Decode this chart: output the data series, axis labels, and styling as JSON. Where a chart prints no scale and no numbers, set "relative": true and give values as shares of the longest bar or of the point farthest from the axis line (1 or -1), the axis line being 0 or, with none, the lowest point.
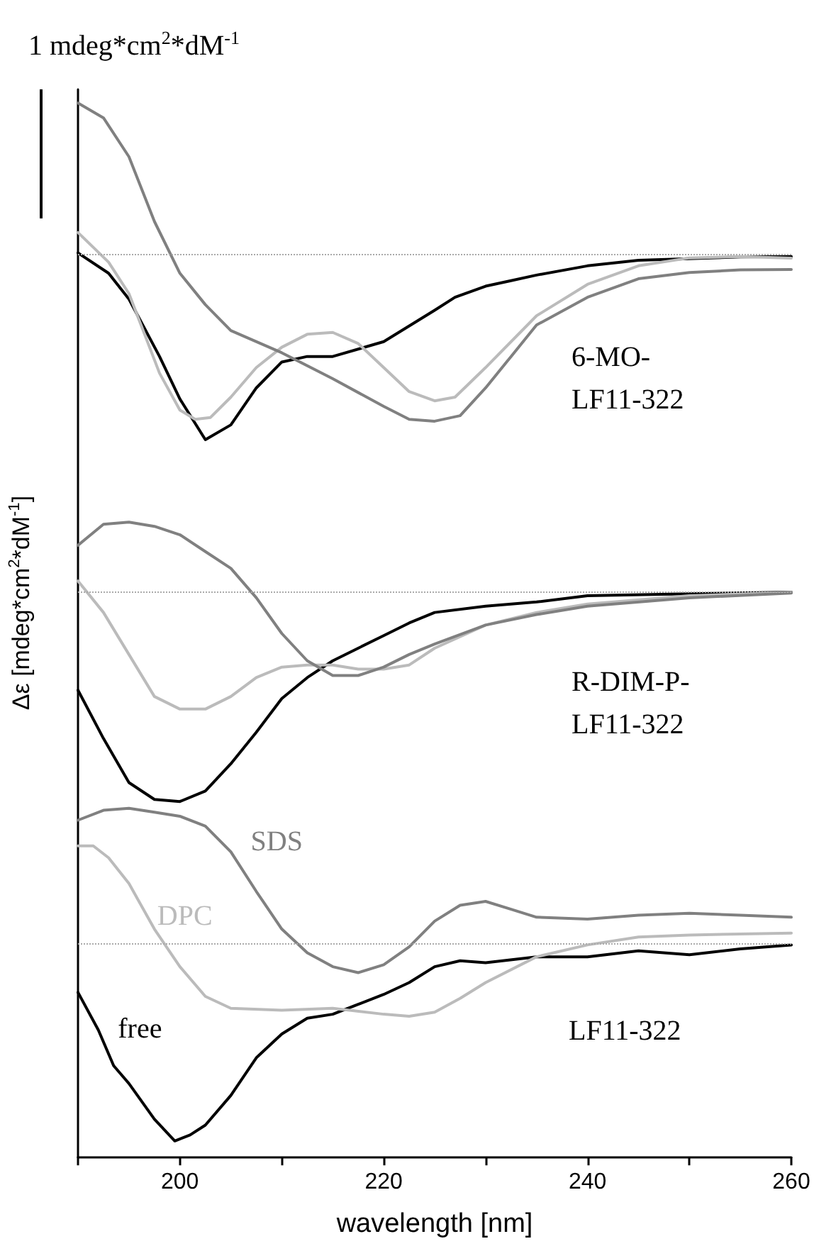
{
  "chart_data": [
    {
      "type": "line",
      "relative": true,
      "xlim": [
        190,
        260
      ],
      "tick_labels": false,
      "marker": "none",
      "line_style": "solid",
      "annotations": [
        "1 mdeg*cm$^{2}$*dM$^{-1}$",
        "6-MO-LF11-322"
      ],
      "ref_lines": [
        {
          "axis": "y",
          "value": 0,
          "color": "#aaaaaa",
          "line_style": "dotted"
        }
      ],
      "series": [
        {
          "color": "#000000",
          "x": [
            190,
            193,
            195,
            198,
            200,
            202.5,
            205,
            207.5,
            210,
            212.5,
            215,
            220,
            225,
            227,
            230,
            232.5,
            235,
            240,
            245,
            250,
            255,
            260
          ],
          "values": [
            0.01,
            -0.1,
            -0.24,
            -0.55,
            -0.78,
            -1,
            -0.92,
            -0.72,
            -0.58,
            -0.55,
            -0.55,
            -0.47,
            -0.3,
            -0.23,
            -0.17,
            -0.14,
            -0.11,
            -0.06,
            -0.03,
            -0.021,
            -0.012,
            -0.01
          ]
        },
        {
          "color": "#bbbbbb",
          "x": [
            190,
            193,
            195,
            198,
            200,
            201.5,
            203,
            205,
            207.5,
            210,
            212.5,
            215,
            217.5,
            220,
            222.5,
            225,
            227,
            230,
            235,
            240,
            245,
            250,
            255,
            260
          ],
          "values": [
            0.12,
            -0.04,
            -0.21,
            -0.64,
            -0.84,
            -0.89,
            -0.88,
            -0.77,
            -0.61,
            -0.5,
            -0.43,
            -0.42,
            -0.48,
            -0.61,
            -0.74,
            -0.79,
            -0.77,
            -0.61,
            -0.33,
            -0.16,
            -0.06,
            -0.017,
            -0.01,
            -0.018
          ]
        },
        {
          "color": "#808080",
          "x": [
            190,
            192.5,
            195,
            197.5,
            200,
            202.5,
            205,
            210,
            215,
            220,
            222.5,
            225,
            227.5,
            230,
            232.5,
            235,
            240,
            245,
            250,
            255,
            260
          ],
          "values": [
            0.82,
            0.74,
            0.53,
            0.18,
            -0.1,
            -0.27,
            -0.41,
            -0.53,
            -0.67,
            -0.82,
            -0.89,
            -0.9,
            -0.87,
            -0.72,
            -0.55,
            -0.38,
            -0.23,
            -0.13,
            -0.096,
            -0.082,
            -0.08
          ]
        }
      ]
    },
    {
      "type": "line",
      "relative": true,
      "xlim": [
        190,
        260
      ],
      "tick_labels": false,
      "marker": "none",
      "line_style": "solid",
      "ylabel": "Δε [mdeg*cm$^{2}$*dM$^{-1}$]",
      "annotations": [
        "R-DIM-P-LF11-322"
      ],
      "ref_lines": [
        {
          "axis": "y",
          "value": 0,
          "color": "#aaaaaa",
          "line_style": "dotted"
        }
      ],
      "x": [
        190,
        192.5,
        195,
        197.5,
        200,
        202.5,
        205,
        207.5,
        210,
        212.5,
        215,
        217.5,
        220,
        222.5,
        225,
        230,
        235,
        240,
        250,
        260
      ],
      "series": [
        {
          "color": "#000000",
          "values": [
            -0.47,
            -0.7,
            -0.91,
            -0.99,
            -1,
            -0.95,
            -0.82,
            -0.67,
            -0.51,
            -0.41,
            -0.33,
            -0.27,
            -0.21,
            -0.15,
            -0.1,
            -0.07,
            -0.05,
            -0.02,
            -0.011,
            -0.003
          ]
        },
        {
          "color": "#bbbbbb",
          "values": [
            0.05,
            -0.1,
            -0.3,
            -0.5,
            -0.56,
            -0.56,
            -0.5,
            -0.41,
            -0.36,
            -0.35,
            -0.35,
            -0.37,
            -0.37,
            -0.35,
            -0.27,
            -0.16,
            -0.1,
            -0.06,
            -0.02,
            -0.004
          ]
        },
        {
          "color": "#808080",
          "values": [
            0.22,
            0.32,
            0.33,
            0.31,
            0.27,
            0.19,
            0.11,
            -0.03,
            -0.2,
            -0.33,
            -0.4,
            -0.4,
            -0.36,
            -0.3,
            -0.25,
            -0.16,
            -0.11,
            -0.07,
            -0.03,
            -0.008
          ]
        }
      ]
    },
    {
      "type": "line",
      "relative": true,
      "xlim": [
        190,
        260
      ],
      "tick_labels": "x",
      "marker": "none",
      "line_style": "solid",
      "xlabel": "wavelength [nm]",
      "xticks": [
        {
          "value": 190,
          "label": null
        },
        200,
        {
          "value": 210,
          "label": null
        },
        220,
        {
          "value": 230,
          "label": null
        },
        240,
        {
          "value": 250,
          "label": null
        },
        260
      ],
      "annotations": [
        "LF11-322"
      ],
      "ref_lines": [
        {
          "axis": "y",
          "value": 0,
          "color": "#aaaaaa",
          "line_style": "dotted"
        }
      ],
      "series": [
        {
          "name": "free",
          "color": "#000000",
          "x": [
            190,
            192,
            193.5,
            195,
            197.5,
            199.5,
            201,
            202.5,
            205,
            207.5,
            210,
            212.5,
            215,
            217.5,
            220,
            222.5,
            225,
            227.5,
            230,
            235,
            240,
            245,
            250,
            255,
            260
          ],
          "values": [
            -0.25,
            -0.44,
            -0.62,
            -0.71,
            -0.89,
            -1,
            -0.97,
            -0.92,
            -0.77,
            -0.58,
            -0.46,
            -0.38,
            -0.36,
            -0.31,
            -0.26,
            -0.2,
            -0.12,
            -0.09,
            -0.1,
            -0.07,
            -0.07,
            -0.04,
            -0.06,
            -0.03,
            -0.01
          ]
        },
        {
          "name": "DPC",
          "color": "#bbbbbb",
          "x": [
            190,
            191.5,
            193,
            195,
            197.5,
            200,
            202.5,
            205,
            210,
            215,
            220,
            222.5,
            225,
            227.5,
            230,
            235,
            240,
            245,
            250,
            260
          ],
          "values": [
            0.49,
            0.49,
            0.43,
            0.3,
            0.07,
            -0.12,
            -0.27,
            -0.33,
            -0.34,
            -0.33,
            -0.36,
            -0.37,
            -0.35,
            -0.28,
            -0.2,
            -0.07,
            -0.01,
            0.03,
            0.04,
            0.05
          ]
        },
        {
          "name": "SDS",
          "color": "#808080",
          "x": [
            190,
            192.5,
            195,
            197.5,
            200,
            202.5,
            205,
            207.5,
            210,
            212.5,
            215,
            217.5,
            220,
            222.5,
            225,
            227.5,
            230,
            232.5,
            235,
            240,
            245,
            250,
            255,
            260
          ],
          "values": [
            0.62,
            0.67,
            0.68,
            0.66,
            0.64,
            0.59,
            0.46,
            0.26,
            0.07,
            -0.05,
            -0.12,
            -0.15,
            -0.11,
            -0.02,
            0.11,
            0.19,
            0.21,
            0.17,
            0.13,
            0.12,
            0.14,
            0.15,
            0.14,
            0.13
          ]
        }
      ]
    }
  ]
}
